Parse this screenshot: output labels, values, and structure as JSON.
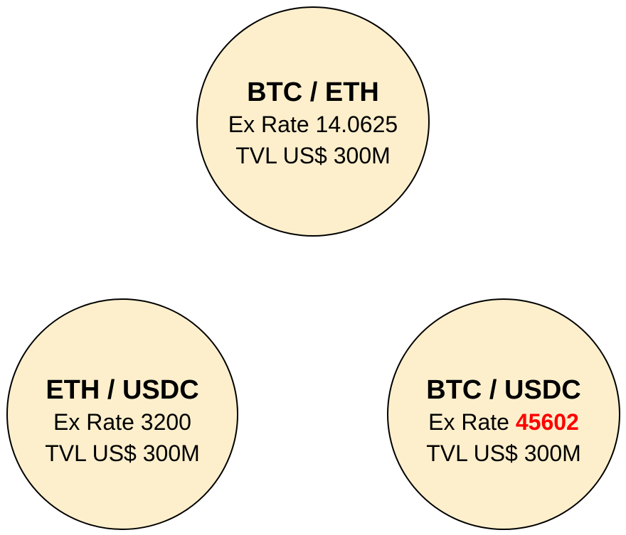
{
  "colors": {
    "circle_fill": "#fdefcc",
    "circle_stroke": "#000000",
    "highlight": "#ff0000"
  },
  "pools": [
    {
      "pair": "BTC / ETH",
      "rate_label": "Ex Rate",
      "rate_value": "14.0625",
      "rate_highlighted": false,
      "tvl": "TVL US$ 300M"
    },
    {
      "pair": "ETH / USDC",
      "rate_label": "Ex Rate",
      "rate_value": "3200",
      "rate_highlighted": false,
      "tvl": "TVL US$ 300M"
    },
    {
      "pair": "BTC / USDC",
      "rate_label": "Ex Rate",
      "rate_value": "45602",
      "rate_highlighted": true,
      "tvl": "TVL US$ 300M"
    }
  ]
}
